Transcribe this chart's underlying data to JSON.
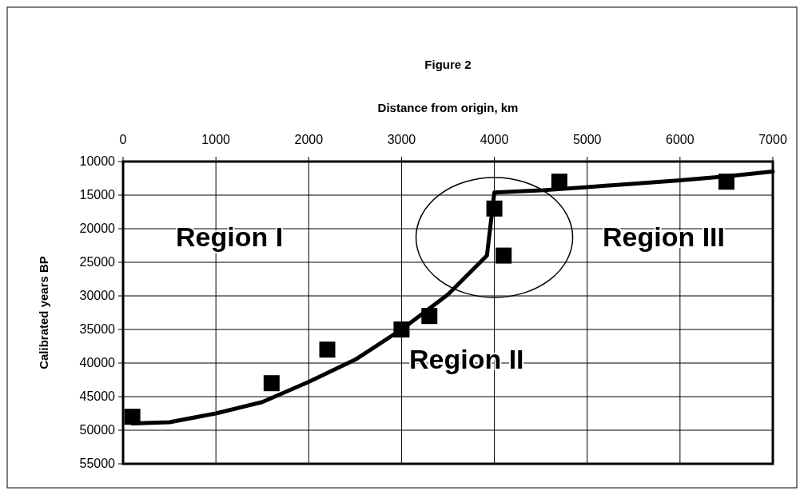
{
  "chart_data": {
    "type": "scatter",
    "title": "Figure 2",
    "xlabel": "Distance from origin, km",
    "ylabel": "Calibrated years BP",
    "xlim": [
      0,
      7000
    ],
    "xticks": [
      0,
      1000,
      2000,
      3000,
      4000,
      5000,
      6000,
      7000
    ],
    "ylim": [
      55000,
      10000
    ],
    "yticks": [
      10000,
      15000,
      20000,
      25000,
      30000,
      35000,
      40000,
      45000,
      50000,
      55000
    ],
    "grid": true,
    "annotations": [
      "Region I",
      "Region II",
      "Region III"
    ],
    "series": [
      {
        "color": "#000000",
        "marker": "square",
        "x": [
          100,
          1600,
          2200,
          3000,
          3300,
          4000,
          4100,
          4700,
          6500
        ],
        "values": [
          48000,
          43000,
          38000,
          35000,
          33000,
          17000,
          24000,
          13000,
          13000
        ]
      },
      {
        "type": "line",
        "color": "#000000",
        "marker": "none",
        "line_style": "solid",
        "x": [
          100,
          500,
          1000,
          1500,
          2000,
          2500,
          3000,
          3500,
          3920,
          4000,
          4500,
          5000,
          5500,
          6000,
          6500,
          7000
        ],
        "values": [
          49000,
          48800,
          47500,
          45800,
          42800,
          39500,
          35000,
          29800,
          24000,
          14600,
          14300,
          13800,
          13300,
          12800,
          12200,
          11500
        ]
      }
    ]
  }
}
